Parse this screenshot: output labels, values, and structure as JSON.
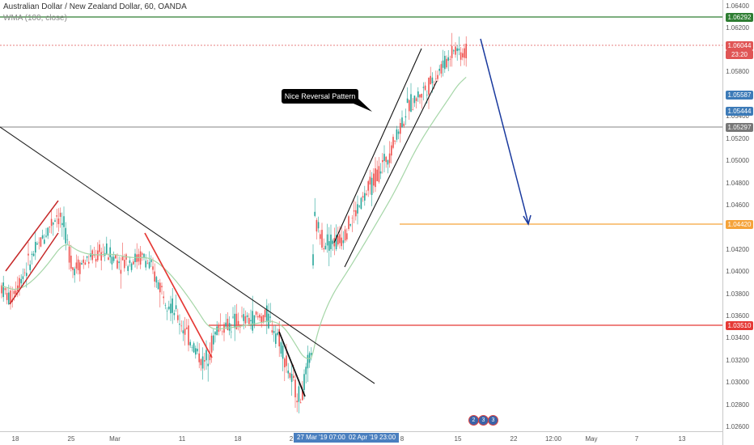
{
  "header": {
    "title": "Australian Dollar / New Zealand Dollar, 60, OANDA",
    "indicator": "WMA (100, close)"
  },
  "annotation": {
    "text": "Nice Reversal Pattern"
  },
  "y_axis": {
    "ticks": [
      "1.06400",
      "1.06200",
      "1.05800",
      "1.05400",
      "1.05200",
      "1.05000",
      "1.04800",
      "1.04600",
      "1.04200",
      "1.04000",
      "1.03800",
      "1.03600",
      "1.03400",
      "1.03200",
      "1.03000",
      "1.02800",
      "1.02600"
    ],
    "badges": [
      {
        "label": "1.06292",
        "color": "#2e7d32"
      },
      {
        "label": "1.06044",
        "color": "#e05555"
      },
      {
        "label": "23:20",
        "color": "#e05555"
      },
      {
        "label": "1.05587",
        "color": "#3d7bb8"
      },
      {
        "label": "1.05444",
        "color": "#3d7bb8"
      },
      {
        "label": "1.05297",
        "color": "#777777"
      },
      {
        "label": "1.04420",
        "color": "#f5a33a"
      },
      {
        "label": "1.03510",
        "color": "#e53935"
      }
    ]
  },
  "x_axis": {
    "ticks": [
      "18",
      "25",
      "Mar",
      "11",
      "18",
      "2",
      "8",
      "15",
      "22",
      "12:00",
      "May",
      "7",
      "13"
    ],
    "crosshair_labels": [
      "27 Mar '19  07:00",
      "02 Apr '19  23:00"
    ]
  },
  "events": [
    {
      "label": "2"
    },
    {
      "label": "3"
    },
    {
      "label": "3"
    }
  ],
  "colors": {
    "resistance_green": "#2e7d32",
    "support_red": "#e53935",
    "target_orange": "#f5a33a",
    "current_price": "#e05555",
    "grey_level": "#9e9e9e",
    "arrow_blue": "#1a3a9e",
    "candle_up": "#26a69a",
    "candle_down": "#ef5350",
    "wma": "#a5d6a7"
  },
  "chart_data": {
    "type": "line",
    "symbol": "AUDNZD",
    "timeframe": "60",
    "x": [
      "18",
      "25",
      "Mar",
      "11",
      "18",
      "2",
      "8",
      "15"
    ],
    "series": [
      {
        "name": "",
        "values": [
          1.0395,
          1.0445,
          1.041,
          1.034,
          1.0355,
          1.03,
          1.043,
          1.0604
        ]
      }
    ],
    "levels": [
      1.06292,
      1.06044,
      1.05587,
      1.05444,
      1.05297,
      1.0442,
      1.0351
    ],
    "ylim": [
      1.0255,
      1.0648
    ]
  }
}
